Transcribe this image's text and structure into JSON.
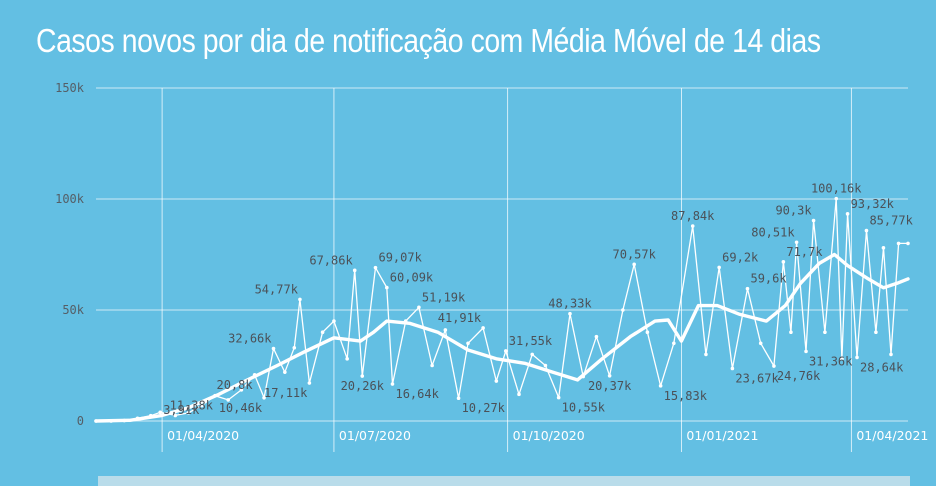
{
  "title": "Casos novos por dia de notificação com Média Móvel de 14 dias",
  "colors": {
    "background": "#63bfe3",
    "line": "#ffffff",
    "grid": "#ffffff",
    "annotation_text": "#4b5158"
  },
  "chart_data": {
    "type": "line",
    "title": "Casos novos por dia de notificação com Média Móvel de 14 dias",
    "xlabel": "",
    "ylabel": "",
    "x_range": [
      "2020-02-26",
      "2021-05-01"
    ],
    "ylim": [
      0,
      150000
    ],
    "y_ticks": [
      {
        "value": 0,
        "label": "0"
      },
      {
        "value": 50000,
        "label": "50k"
      },
      {
        "value": 100000,
        "label": "100k"
      },
      {
        "value": 150000,
        "label": "150k"
      }
    ],
    "x_ticks": [
      {
        "date": "2020-04-01",
        "label": "01/04/2020"
      },
      {
        "date": "2020-07-01",
        "label": "01/07/2020"
      },
      {
        "date": "2020-10-01",
        "label": "01/10/2020"
      },
      {
        "date": "2021-01-01",
        "label": "01/01/2021"
      },
      {
        "date": "2021-04-01",
        "label": "01/04/2021"
      }
    ],
    "grid": true,
    "legend": "none",
    "series": [
      {
        "key": "daily",
        "style": "thin line with point markers",
        "points": [
          [
            "2020-02-26",
            1
          ],
          [
            "2020-03-05",
            1
          ],
          [
            "2020-03-12",
            200
          ],
          [
            "2020-03-19",
            1200
          ],
          [
            "2020-03-26",
            2400
          ],
          [
            "2020-03-31",
            3910
          ],
          [
            "2020-04-08",
            2500
          ],
          [
            "2020-04-15",
            3700
          ],
          [
            "2020-04-22",
            7000
          ],
          [
            "2020-04-29",
            11380
          ],
          [
            "2020-05-06",
            9500
          ],
          [
            "2020-05-13",
            14000
          ],
          [
            "2020-05-20",
            20800
          ],
          [
            "2020-05-25",
            10460
          ],
          [
            "2020-05-30",
            32660
          ],
          [
            "2020-06-05",
            22000
          ],
          [
            "2020-06-10",
            33000
          ],
          [
            "2020-06-13",
            54770
          ],
          [
            "2020-06-18",
            17110
          ],
          [
            "2020-06-25",
            40000
          ],
          [
            "2020-07-01",
            45000
          ],
          [
            "2020-07-08",
            28000
          ],
          [
            "2020-07-12",
            67860
          ],
          [
            "2020-07-16",
            20260
          ],
          [
            "2020-07-23",
            69070
          ],
          [
            "2020-07-29",
            60090
          ],
          [
            "2020-08-01",
            16640
          ],
          [
            "2020-08-08",
            45000
          ],
          [
            "2020-08-15",
            51190
          ],
          [
            "2020-08-22",
            25000
          ],
          [
            "2020-08-29",
            41000
          ],
          [
            "2020-09-05",
            10270
          ],
          [
            "2020-09-10",
            35000
          ],
          [
            "2020-09-18",
            41910
          ],
          [
            "2020-09-25",
            18000
          ],
          [
            "2020-09-30",
            31550
          ],
          [
            "2020-10-07",
            12000
          ],
          [
            "2020-10-14",
            30000
          ],
          [
            "2020-10-21",
            25000
          ],
          [
            "2020-10-28",
            10550
          ],
          [
            "2020-11-03",
            48330
          ],
          [
            "2020-11-10",
            20000
          ],
          [
            "2020-11-17",
            38000
          ],
          [
            "2020-11-24",
            20370
          ],
          [
            "2020-12-01",
            50000
          ],
          [
            "2020-12-07",
            70570
          ],
          [
            "2020-12-14",
            40000
          ],
          [
            "2020-12-21",
            15830
          ],
          [
            "2020-12-28",
            35000
          ],
          [
            "2021-01-07",
            87840
          ],
          [
            "2021-01-14",
            30000
          ],
          [
            "2021-01-21",
            69200
          ],
          [
            "2021-01-28",
            23670
          ],
          [
            "2021-02-05",
            59600
          ],
          [
            "2021-02-12",
            35000
          ],
          [
            "2021-02-19",
            24760
          ],
          [
            "2021-02-24",
            71700
          ],
          [
            "2021-02-28",
            40000
          ],
          [
            "2021-03-03",
            80510
          ],
          [
            "2021-03-08",
            31360
          ],
          [
            "2021-03-12",
            90300
          ],
          [
            "2021-03-18",
            40000
          ],
          [
            "2021-03-24",
            100160
          ],
          [
            "2021-03-27",
            28000
          ],
          [
            "2021-03-30",
            93320
          ],
          [
            "2021-04-04",
            28640
          ],
          [
            "2021-04-09",
            85770
          ],
          [
            "2021-04-14",
            40000
          ],
          [
            "2021-04-18",
            78000
          ],
          [
            "2021-04-22",
            30000
          ],
          [
            "2021-04-26",
            80000
          ],
          [
            "2021-05-01",
            80000
          ]
        ]
      },
      {
        "key": "moving_average",
        "style": "thick line",
        "points": [
          [
            "2020-02-26",
            0
          ],
          [
            "2020-03-15",
            300
          ],
          [
            "2020-04-01",
            2500
          ],
          [
            "2020-04-15",
            6000
          ],
          [
            "2020-05-01",
            12000
          ],
          [
            "2020-05-15",
            18000
          ],
          [
            "2020-06-01",
            25000
          ],
          [
            "2020-06-15",
            31000
          ],
          [
            "2020-07-01",
            37500
          ],
          [
            "2020-07-15",
            36000
          ],
          [
            "2020-07-22",
            40000
          ],
          [
            "2020-07-29",
            45000
          ],
          [
            "2020-08-10",
            44000
          ],
          [
            "2020-08-25",
            40000
          ],
          [
            "2020-09-10",
            32000
          ],
          [
            "2020-09-25",
            28000
          ],
          [
            "2020-10-10",
            26000
          ],
          [
            "2020-10-25",
            22000
          ],
          [
            "2020-11-07",
            18500
          ],
          [
            "2020-11-20",
            28000
          ],
          [
            "2020-12-05",
            38000
          ],
          [
            "2020-12-18",
            45000
          ],
          [
            "2020-12-25",
            45500
          ],
          [
            "2021-01-01",
            36000
          ],
          [
            "2021-01-10",
            52000
          ],
          [
            "2021-01-20",
            52000
          ],
          [
            "2021-02-01",
            48000
          ],
          [
            "2021-02-15",
            45000
          ],
          [
            "2021-02-25",
            52000
          ],
          [
            "2021-03-05",
            62000
          ],
          [
            "2021-03-15",
            71000
          ],
          [
            "2021-03-23",
            75000
          ],
          [
            "2021-03-30",
            70000
          ],
          [
            "2021-04-10",
            64000
          ],
          [
            "2021-04-18",
            60000
          ],
          [
            "2021-04-25",
            62000
          ],
          [
            "2021-05-01",
            64000
          ]
        ]
      }
    ],
    "annotations": [
      {
        "date": "2020-03-31",
        "value": 3910,
        "text": "3,91k",
        "anchor": "start"
      },
      {
        "date": "2020-04-29",
        "value": 11380,
        "text": "11,38k",
        "anchor": "end"
      },
      {
        "date": "2020-05-20",
        "value": 20800,
        "text": "20,8k",
        "anchor": "end"
      },
      {
        "date": "2020-05-25",
        "value": 10460,
        "text": "10,46k",
        "anchor": "end"
      },
      {
        "date": "2020-05-30",
        "value": 32660,
        "text": "32,66k",
        "anchor": "end"
      },
      {
        "date": "2020-06-13",
        "value": 54770,
        "text": "54,77k",
        "anchor": "end"
      },
      {
        "date": "2020-06-18",
        "value": 17110,
        "text": "17,11k",
        "anchor": "end"
      },
      {
        "date": "2020-07-12",
        "value": 67860,
        "text": "67,86k",
        "anchor": "end"
      },
      {
        "date": "2020-07-16",
        "value": 20260,
        "text": "20,26k",
        "anchor": "middle"
      },
      {
        "date": "2020-07-23",
        "value": 69070,
        "text": "69,07k",
        "anchor": "start"
      },
      {
        "date": "2020-07-29",
        "value": 60090,
        "text": "60,09k",
        "anchor": "start"
      },
      {
        "date": "2020-08-01",
        "value": 16640,
        "text": "16,64k",
        "anchor": "start"
      },
      {
        "date": "2020-08-15",
        "value": 51190,
        "text": "51,19k",
        "anchor": "start"
      },
      {
        "date": "2020-09-05",
        "value": 10270,
        "text": "10,27k",
        "anchor": "start"
      },
      {
        "date": "2020-09-18",
        "value": 41910,
        "text": "41,91k",
        "anchor": "end"
      },
      {
        "date": "2020-09-30",
        "value": 31550,
        "text": "31,55k",
        "anchor": "start"
      },
      {
        "date": "2020-10-28",
        "value": 10550,
        "text": "10,55k",
        "anchor": "start"
      },
      {
        "date": "2020-11-03",
        "value": 48330,
        "text": "48,33k",
        "anchor": "middle"
      },
      {
        "date": "2020-11-24",
        "value": 20370,
        "text": "20,37k",
        "anchor": "middle"
      },
      {
        "date": "2020-12-07",
        "value": 70570,
        "text": "70,57k",
        "anchor": "middle"
      },
      {
        "date": "2020-12-21",
        "value": 15830,
        "text": "15,83k",
        "anchor": "start"
      },
      {
        "date": "2021-01-07",
        "value": 87840,
        "text": "87,84k",
        "anchor": "middle"
      },
      {
        "date": "2021-01-21",
        "value": 69200,
        "text": "69,2k",
        "anchor": "start"
      },
      {
        "date": "2021-01-28",
        "value": 23670,
        "text": "23,67k",
        "anchor": "start"
      },
      {
        "date": "2021-02-05",
        "value": 59600,
        "text": "59,6k",
        "anchor": "start"
      },
      {
        "date": "2021-02-19",
        "value": 24760,
        "text": "24,76k",
        "anchor": "start"
      },
      {
        "date": "2021-02-24",
        "value": 71700,
        "text": "71,7k",
        "anchor": "start"
      },
      {
        "date": "2021-03-03",
        "value": 80510,
        "text": "80,51k",
        "anchor": "end"
      },
      {
        "date": "2021-03-08",
        "value": 31360,
        "text": "31,36k",
        "anchor": "start"
      },
      {
        "date": "2021-03-12",
        "value": 90300,
        "text": "90,3k",
        "anchor": "end"
      },
      {
        "date": "2021-03-24",
        "value": 100160,
        "text": "100,16k",
        "anchor": "middle"
      },
      {
        "date": "2021-03-30",
        "value": 93320,
        "text": "93,32k",
        "anchor": "start"
      },
      {
        "date": "2021-04-04",
        "value": 28640,
        "text": "28,64k",
        "anchor": "start"
      },
      {
        "date": "2021-04-09",
        "value": 85770,
        "text": "85,77k",
        "anchor": "start"
      }
    ]
  }
}
